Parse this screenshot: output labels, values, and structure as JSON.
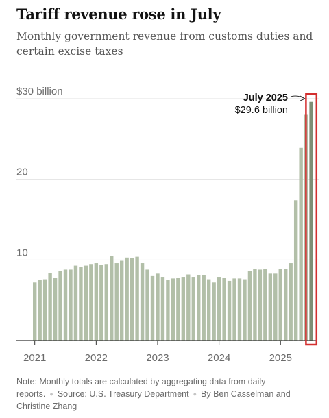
{
  "header": {
    "title": "Tariff revenue rose in July",
    "subtitle": "Monthly government revenue from customs duties and certain excise taxes"
  },
  "footer": {
    "note": "Note: Monthly totals are calculated by aggregating data from daily reports.",
    "source": "Source: U.S. Treasury Department",
    "byline": "By Ben Casselman and Christine Zhang"
  },
  "chart_data": {
    "type": "bar",
    "title": "Tariff revenue rose in July",
    "subtitle": "Monthly government revenue from customs duties and certain excise taxes",
    "xlabel": "",
    "ylabel": "",
    "ylim": [
      0,
      30
    ],
    "y_ticks": [
      {
        "value": 30,
        "label": "$30 billion"
      },
      {
        "value": 20,
        "label": "20"
      },
      {
        "value": 10,
        "label": "10"
      }
    ],
    "x_ticks": [
      {
        "index": 0,
        "label": "2021"
      },
      {
        "index": 12,
        "label": "2022"
      },
      {
        "index": 24,
        "label": "2023"
      },
      {
        "index": 36,
        "label": "2024"
      },
      {
        "index": 48,
        "label": "2025"
      }
    ],
    "grid": true,
    "bar_color": "#b2bfa8",
    "highlight_bar_color": "#7f8f76",
    "highlight_box_color": "#d32f2f",
    "categories": [
      "Jan 2021",
      "Feb 2021",
      "Mar 2021",
      "Apr 2021",
      "May 2021",
      "Jun 2021",
      "Jul 2021",
      "Aug 2021",
      "Sep 2021",
      "Oct 2021",
      "Nov 2021",
      "Dec 2021",
      "Jan 2022",
      "Feb 2022",
      "Mar 2022",
      "Apr 2022",
      "May 2022",
      "Jun 2022",
      "Jul 2022",
      "Aug 2022",
      "Sep 2022",
      "Oct 2022",
      "Nov 2022",
      "Dec 2022",
      "Jan 2023",
      "Feb 2023",
      "Mar 2023",
      "Apr 2023",
      "May 2023",
      "Jun 2023",
      "Jul 2023",
      "Aug 2023",
      "Sep 2023",
      "Oct 2023",
      "Nov 2023",
      "Dec 2023",
      "Jan 2024",
      "Feb 2024",
      "Mar 2024",
      "Apr 2024",
      "May 2024",
      "Jun 2024",
      "Jul 2024",
      "Aug 2024",
      "Sep 2024",
      "Oct 2024",
      "Nov 2024",
      "Dec 2024",
      "Jan 2025",
      "Feb 2025",
      "Mar 2025",
      "Apr 2025",
      "May 2025",
      "Jun 2025",
      "Jul 2025"
    ],
    "values": [
      7.2,
      7.5,
      7.6,
      8.4,
      7.8,
      8.6,
      8.8,
      8.8,
      9.3,
      9.1,
      9.3,
      9.5,
      9.6,
      9.4,
      9.5,
      10.5,
      9.6,
      9.9,
      10.3,
      10.2,
      10.4,
      9.6,
      8.8,
      8.0,
      8.3,
      7.9,
      7.5,
      7.7,
      7.8,
      7.9,
      8.2,
      7.9,
      8.1,
      8.1,
      7.6,
      7.2,
      7.9,
      7.8,
      7.4,
      7.7,
      7.7,
      7.6,
      8.6,
      8.9,
      8.8,
      8.9,
      8.3,
      8.3,
      8.9,
      8.9,
      9.6,
      17.4,
      23.9,
      28.0,
      29.6
    ],
    "annotation": {
      "label": "July 2025",
      "value_text": "$29.6 billion"
    }
  }
}
